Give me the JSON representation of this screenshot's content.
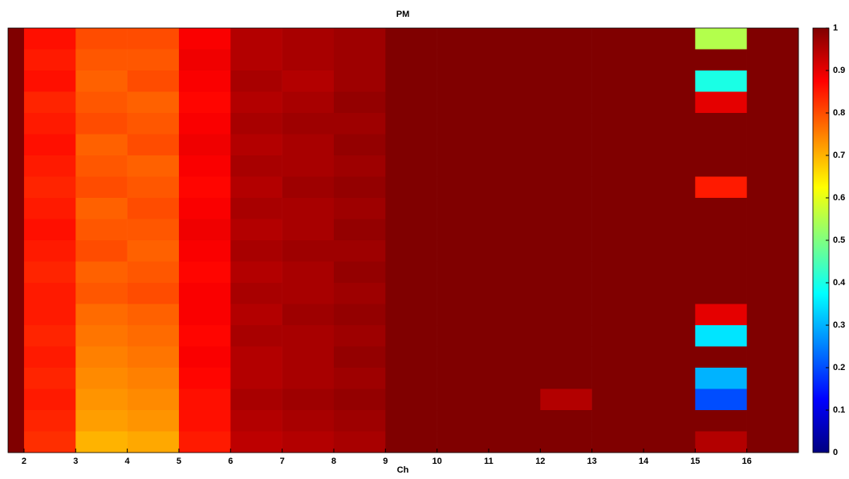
{
  "chart_data": {
    "type": "heatmap",
    "title": "PM",
    "x_label": "Ch",
    "x_edges": [
      1.69,
      2,
      3,
      4,
      5,
      6,
      7,
      8,
      9,
      10,
      11,
      12,
      13,
      14,
      15,
      16,
      17
    ],
    "xlim": [
      1.69,
      17
    ],
    "xticks": [
      2,
      3,
      4,
      5,
      6,
      7,
      8,
      9,
      10,
      11,
      12,
      13,
      14,
      15,
      16
    ],
    "colormap": "jet",
    "clim": [
      0,
      1
    ],
    "cticks": [
      0,
      0.1,
      0.2,
      0.3,
      0.4,
      0.5,
      0.6,
      0.7,
      0.8,
      0.9,
      1
    ],
    "z": [
      [
        1,
        0.86,
        0.8,
        0.8,
        0.88,
        0.95,
        0.96,
        0.97,
        1,
        1,
        1,
        1,
        1,
        1,
        0.55,
        1
      ],
      [
        1,
        0.85,
        0.79,
        0.79,
        0.89,
        0.95,
        0.96,
        0.97,
        1,
        1,
        1,
        1,
        1,
        1,
        1,
        1
      ],
      [
        1,
        0.86,
        0.78,
        0.8,
        0.88,
        0.96,
        0.95,
        0.97,
        1,
        1,
        1,
        1,
        1,
        1,
        0.4,
        1
      ],
      [
        1,
        0.84,
        0.79,
        0.78,
        0.87,
        0.95,
        0.96,
        0.98,
        1,
        1,
        1,
        1,
        1,
        1,
        0.9,
        1
      ],
      [
        1,
        0.85,
        0.8,
        0.79,
        0.88,
        0.96,
        0.97,
        0.97,
        1,
        1,
        1,
        1,
        1,
        1,
        1,
        1
      ],
      [
        1,
        0.86,
        0.78,
        0.8,
        0.89,
        0.95,
        0.96,
        0.98,
        1,
        1,
        1,
        1,
        1,
        1,
        1,
        1
      ],
      [
        1,
        0.85,
        0.79,
        0.78,
        0.88,
        0.96,
        0.96,
        0.97,
        1,
        1,
        1,
        1,
        1,
        1,
        1,
        1
      ],
      [
        1,
        0.84,
        0.8,
        0.79,
        0.87,
        0.95,
        0.97,
        0.98,
        1,
        1,
        1,
        1,
        1,
        1,
        0.85,
        1
      ],
      [
        1,
        0.85,
        0.78,
        0.8,
        0.88,
        0.96,
        0.96,
        0.97,
        1,
        1,
        1,
        1,
        1,
        1,
        1,
        1
      ],
      [
        1,
        0.86,
        0.79,
        0.79,
        0.89,
        0.95,
        0.96,
        0.98,
        1,
        1,
        1,
        1,
        1,
        1,
        1,
        1
      ],
      [
        1,
        0.85,
        0.8,
        0.78,
        0.88,
        0.96,
        0.97,
        0.97,
        1,
        1,
        1,
        1,
        1,
        1,
        1,
        1
      ],
      [
        1,
        0.84,
        0.78,
        0.79,
        0.87,
        0.95,
        0.96,
        0.98,
        1,
        1,
        1,
        1,
        1,
        1,
        1,
        1
      ],
      [
        1,
        0.85,
        0.79,
        0.8,
        0.88,
        0.96,
        0.96,
        0.97,
        1,
        1,
        1,
        1,
        1,
        1,
        1,
        1
      ],
      [
        1,
        0.85,
        0.77,
        0.78,
        0.88,
        0.95,
        0.97,
        0.98,
        1,
        1,
        1,
        1,
        1,
        1,
        0.9,
        1
      ],
      [
        1,
        0.84,
        0.76,
        0.77,
        0.87,
        0.96,
        0.96,
        0.97,
        1,
        1,
        1,
        1,
        1,
        1,
        0.35,
        1
      ],
      [
        1,
        0.85,
        0.75,
        0.76,
        0.88,
        0.95,
        0.96,
        0.98,
        1,
        1,
        1,
        1,
        1,
        1,
        1,
        1
      ],
      [
        1,
        0.84,
        0.74,
        0.75,
        0.87,
        0.95,
        0.96,
        0.97,
        1,
        1,
        1,
        1,
        1,
        1,
        0.3,
        1
      ],
      [
        1,
        0.85,
        0.73,
        0.74,
        0.86,
        0.96,
        0.97,
        0.98,
        1,
        1,
        1,
        0.95,
        1,
        1,
        0.2,
        1
      ],
      [
        1,
        0.84,
        0.72,
        0.73,
        0.86,
        0.95,
        0.96,
        0.97,
        1,
        1,
        1,
        1,
        1,
        1,
        1,
        1
      ],
      [
        1,
        0.83,
        0.7,
        0.71,
        0.85,
        0.94,
        0.95,
        0.96,
        1,
        1,
        1,
        1,
        1,
        1,
        0.95,
        1
      ]
    ]
  }
}
